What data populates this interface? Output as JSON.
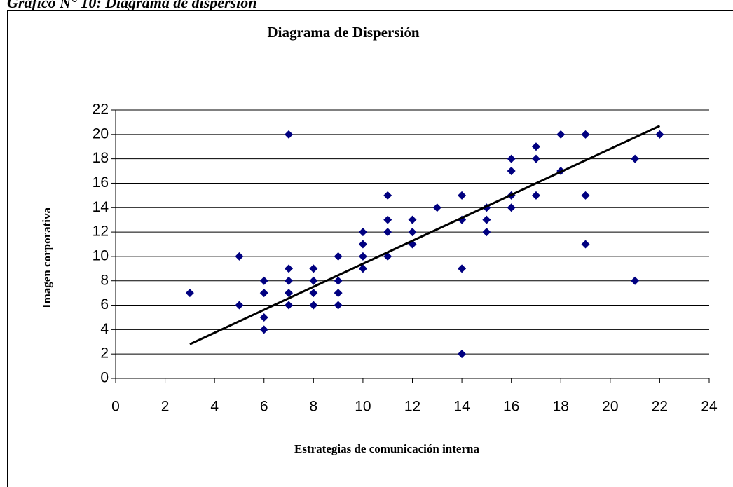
{
  "caption": "Gráfico N° 10: Diagrama de dispersión",
  "chart_data": {
    "type": "scatter",
    "title": "Diagrama de Dispersión",
    "xlabel": "Estrategias de comunicación interna",
    "ylabel": "Imagen corporativa",
    "x": [
      3,
      5,
      5,
      6,
      6,
      6,
      6,
      7,
      7,
      7,
      7,
      7,
      8,
      8,
      8,
      8,
      9,
      9,
      9,
      9,
      10,
      10,
      10,
      10,
      11,
      11,
      11,
      11,
      12,
      12,
      12,
      13,
      14,
      14,
      14,
      14,
      15,
      15,
      15,
      16,
      16,
      16,
      16,
      17,
      17,
      17,
      18,
      18,
      19,
      19,
      19,
      21,
      21,
      22
    ],
    "values": [
      7,
      10,
      6,
      8,
      7,
      5,
      4,
      20,
      9,
      8,
      7,
      6,
      9,
      8,
      7,
      6,
      10,
      8,
      7,
      6,
      12,
      11,
      10,
      9,
      15,
      13,
      12,
      10,
      13,
      12,
      11,
      14,
      15,
      13,
      9,
      2,
      14,
      13,
      12,
      18,
      17,
      15,
      14,
      19,
      18,
      15,
      20,
      17,
      20,
      15,
      11,
      18,
      8,
      20
    ],
    "color": "#000080",
    "trendline": {
      "x": [
        3,
        22
      ],
      "values": [
        2.8,
        20.7
      ],
      "color": "#000000"
    },
    "xlim": [
      0,
      24
    ],
    "xticks": [
      0,
      2,
      4,
      6,
      8,
      10,
      12,
      14,
      16,
      18,
      20,
      22,
      24
    ],
    "ylim": [
      0,
      22
    ],
    "yticks": [
      0,
      2,
      4,
      6,
      8,
      10,
      12,
      14,
      16,
      18,
      20,
      22
    ],
    "grid": true
  }
}
